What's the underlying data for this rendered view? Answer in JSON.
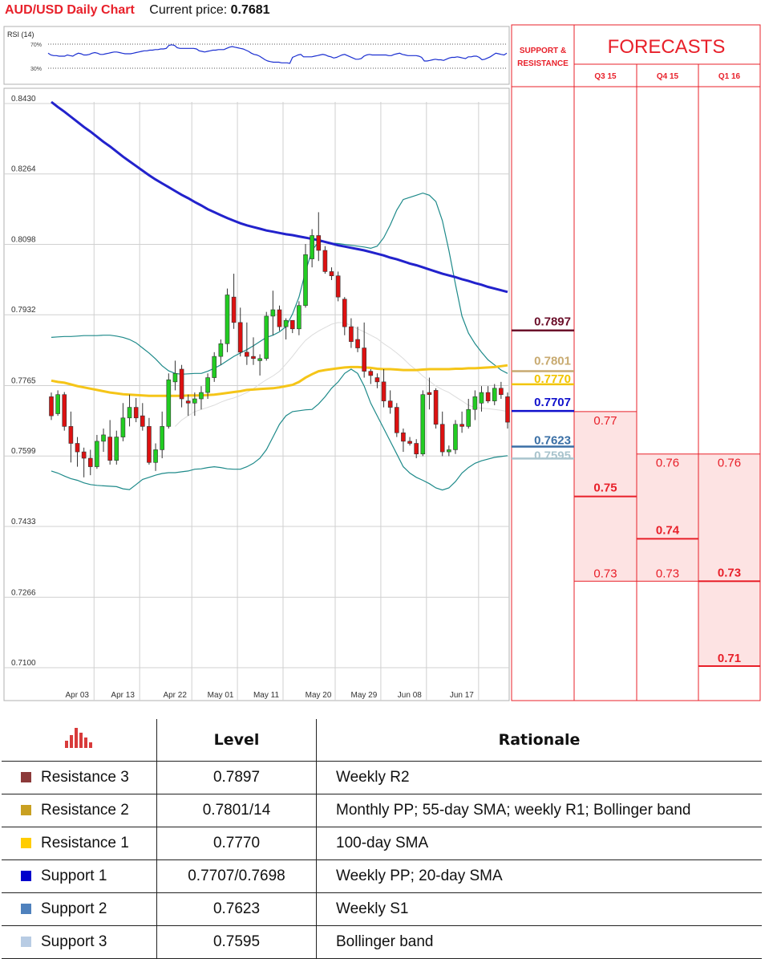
{
  "header": {
    "title": "AUD/USD Daily Chart",
    "price_label": "Current price:",
    "price_value": "0.7681"
  },
  "rsi": {
    "label": "RSI (14)",
    "levels": [
      "70%",
      "30%"
    ],
    "values": [
      55,
      52,
      51,
      51,
      50,
      50,
      50,
      52,
      51,
      50,
      53,
      55,
      54,
      52,
      52,
      53,
      55,
      56,
      55,
      53,
      53,
      54,
      55,
      56,
      57,
      57,
      56,
      55,
      54,
      54,
      54,
      55,
      56,
      57,
      58,
      59,
      59,
      60,
      60,
      61,
      61,
      62,
      62,
      63,
      68,
      69,
      68,
      64,
      63,
      63,
      63,
      63,
      63,
      63,
      62,
      59,
      58,
      57,
      58,
      59,
      60,
      60,
      61,
      61,
      61,
      63,
      65,
      66,
      65,
      64,
      63,
      62,
      60,
      58,
      55,
      53,
      52,
      50,
      47,
      44,
      42,
      41,
      40,
      40,
      40,
      39,
      39,
      39,
      38,
      48,
      50,
      52,
      53,
      49,
      49,
      49,
      49,
      50,
      51,
      52,
      53,
      52,
      50,
      49,
      47,
      48,
      50,
      52,
      53,
      51,
      49,
      47,
      45,
      45,
      46,
      50,
      52,
      53,
      52,
      52,
      52,
      52,
      52,
      52,
      51,
      51,
      53,
      54,
      55,
      53,
      52,
      51,
      51,
      51,
      51,
      50,
      48,
      42,
      42,
      43,
      44,
      45,
      44,
      44,
      43,
      45,
      47,
      48,
      48,
      49,
      48,
      47,
      46,
      49,
      49,
      50,
      50,
      48,
      44,
      45,
      47,
      49,
      52,
      55,
      54,
      53,
      52,
      55
    ]
  },
  "chart_data": {
    "type": "candlestick",
    "y_ticks": [
      "0.8430",
      "0.8264",
      "0.8098",
      "0.7932",
      "0.7765",
      "0.7599",
      "0.7433",
      "0.7266",
      "0.7100"
    ],
    "ylim": [
      0.71,
      0.843
    ],
    "x_ticks": [
      "Apr 03",
      "Apr 13",
      "Apr 22",
      "May 01",
      "May 11",
      "May 20",
      "May 29",
      "Jun 08",
      "Jun 17"
    ],
    "x_tick_index": [
      2,
      9,
      17,
      24,
      31,
      39,
      46,
      53,
      61
    ],
    "candles": [
      {
        "o": 0.7735,
        "h": 0.7745,
        "l": 0.768,
        "c": 0.769
      },
      {
        "o": 0.7695,
        "h": 0.775,
        "l": 0.769,
        "c": 0.774
      },
      {
        "o": 0.774,
        "h": 0.7746,
        "l": 0.7655,
        "c": 0.7665
      },
      {
        "o": 0.7665,
        "h": 0.77,
        "l": 0.758,
        "c": 0.7625
      },
      {
        "o": 0.7625,
        "h": 0.764,
        "l": 0.757,
        "c": 0.7605
      },
      {
        "o": 0.7605,
        "h": 0.7615,
        "l": 0.7545,
        "c": 0.759
      },
      {
        "o": 0.759,
        "h": 0.761,
        "l": 0.755,
        "c": 0.757
      },
      {
        "o": 0.757,
        "h": 0.7645,
        "l": 0.7565,
        "c": 0.763
      },
      {
        "o": 0.763,
        "h": 0.766,
        "l": 0.7605,
        "c": 0.7645
      },
      {
        "o": 0.764,
        "h": 0.768,
        "l": 0.7575,
        "c": 0.7585
      },
      {
        "o": 0.7585,
        "h": 0.7655,
        "l": 0.7575,
        "c": 0.764
      },
      {
        "o": 0.764,
        "h": 0.772,
        "l": 0.763,
        "c": 0.7685
      },
      {
        "o": 0.7685,
        "h": 0.774,
        "l": 0.7665,
        "c": 0.771
      },
      {
        "o": 0.771,
        "h": 0.7732,
        "l": 0.7675,
        "c": 0.7685
      },
      {
        "o": 0.769,
        "h": 0.772,
        "l": 0.7655,
        "c": 0.7665
      },
      {
        "o": 0.7665,
        "h": 0.7685,
        "l": 0.7575,
        "c": 0.758
      },
      {
        "o": 0.758,
        "h": 0.7625,
        "l": 0.756,
        "c": 0.761
      },
      {
        "o": 0.761,
        "h": 0.77,
        "l": 0.759,
        "c": 0.7665
      },
      {
        "o": 0.7665,
        "h": 0.779,
        "l": 0.766,
        "c": 0.7775
      },
      {
        "o": 0.777,
        "h": 0.782,
        "l": 0.775,
        "c": 0.779
      },
      {
        "o": 0.78,
        "h": 0.781,
        "l": 0.771,
        "c": 0.773
      },
      {
        "o": 0.7725,
        "h": 0.774,
        "l": 0.769,
        "c": 0.772
      },
      {
        "o": 0.772,
        "h": 0.7745,
        "l": 0.769,
        "c": 0.773
      },
      {
        "o": 0.773,
        "h": 0.776,
        "l": 0.7705,
        "c": 0.7745
      },
      {
        "o": 0.7745,
        "h": 0.779,
        "l": 0.773,
        "c": 0.778
      },
      {
        "o": 0.778,
        "h": 0.784,
        "l": 0.777,
        "c": 0.783
      },
      {
        "o": 0.783,
        "h": 0.787,
        "l": 0.781,
        "c": 0.786
      },
      {
        "o": 0.786,
        "h": 0.799,
        "l": 0.784,
        "c": 0.7975
      },
      {
        "o": 0.797,
        "h": 0.8025,
        "l": 0.7895,
        "c": 0.791
      },
      {
        "o": 0.791,
        "h": 0.7945,
        "l": 0.783,
        "c": 0.784
      },
      {
        "o": 0.784,
        "h": 0.791,
        "l": 0.781,
        "c": 0.783
      },
      {
        "o": 0.783,
        "h": 0.7875,
        "l": 0.781,
        "c": 0.7825
      },
      {
        "o": 0.782,
        "h": 0.7835,
        "l": 0.7785,
        "c": 0.7825
      },
      {
        "o": 0.7825,
        "h": 0.7935,
        "l": 0.782,
        "c": 0.7925
      },
      {
        "o": 0.7925,
        "h": 0.7985,
        "l": 0.788,
        "c": 0.794
      },
      {
        "o": 0.794,
        "h": 0.795,
        "l": 0.789,
        "c": 0.79
      },
      {
        "o": 0.79,
        "h": 0.792,
        "l": 0.787,
        "c": 0.7915
      },
      {
        "o": 0.7915,
        "h": 0.7915,
        "l": 0.7885,
        "c": 0.7895
      },
      {
        "o": 0.7895,
        "h": 0.796,
        "l": 0.788,
        "c": 0.795
      },
      {
        "o": 0.795,
        "h": 0.8095,
        "l": 0.7945,
        "c": 0.807
      },
      {
        "o": 0.806,
        "h": 0.813,
        "l": 0.804,
        "c": 0.8115
      },
      {
        "o": 0.8115,
        "h": 0.817,
        "l": 0.8055,
        "c": 0.808
      },
      {
        "o": 0.808,
        "h": 0.809,
        "l": 0.8025,
        "c": 0.803
      },
      {
        "o": 0.803,
        "h": 0.804,
        "l": 0.801,
        "c": 0.802
      },
      {
        "o": 0.802,
        "h": 0.803,
        "l": 0.796,
        "c": 0.797
      },
      {
        "o": 0.7965,
        "h": 0.797,
        "l": 0.788,
        "c": 0.79
      },
      {
        "o": 0.79,
        "h": 0.792,
        "l": 0.785,
        "c": 0.7865
      },
      {
        "o": 0.787,
        "h": 0.79,
        "l": 0.784,
        "c": 0.785
      },
      {
        "o": 0.785,
        "h": 0.791,
        "l": 0.778,
        "c": 0.7795
      },
      {
        "o": 0.7795,
        "h": 0.78,
        "l": 0.7765,
        "c": 0.7785
      },
      {
        "o": 0.778,
        "h": 0.779,
        "l": 0.7755,
        "c": 0.777
      },
      {
        "o": 0.777,
        "h": 0.78,
        "l": 0.771,
        "c": 0.7725
      },
      {
        "o": 0.7725,
        "h": 0.775,
        "l": 0.7695,
        "c": 0.771
      },
      {
        "o": 0.771,
        "h": 0.772,
        "l": 0.764,
        "c": 0.765
      },
      {
        "o": 0.765,
        "h": 0.766,
        "l": 0.7605,
        "c": 0.763
      },
      {
        "o": 0.763,
        "h": 0.764,
        "l": 0.762,
        "c": 0.7625
      },
      {
        "o": 0.7625,
        "h": 0.7635,
        "l": 0.759,
        "c": 0.76
      },
      {
        "o": 0.76,
        "h": 0.775,
        "l": 0.7595,
        "c": 0.774
      },
      {
        "o": 0.7745,
        "h": 0.778,
        "l": 0.7705,
        "c": 0.774
      },
      {
        "o": 0.775,
        "h": 0.7755,
        "l": 0.766,
        "c": 0.767
      },
      {
        "o": 0.767,
        "h": 0.77,
        "l": 0.7595,
        "c": 0.7605
      },
      {
        "o": 0.7605,
        "h": 0.762,
        "l": 0.7595,
        "c": 0.761
      },
      {
        "o": 0.761,
        "h": 0.768,
        "l": 0.76,
        "c": 0.767
      },
      {
        "o": 0.767,
        "h": 0.77,
        "l": 0.765,
        "c": 0.7665
      },
      {
        "o": 0.7665,
        "h": 0.773,
        "l": 0.766,
        "c": 0.7705
      },
      {
        "o": 0.7705,
        "h": 0.775,
        "l": 0.768,
        "c": 0.7735
      },
      {
        "o": 0.772,
        "h": 0.776,
        "l": 0.77,
        "c": 0.7745
      },
      {
        "o": 0.7745,
        "h": 0.776,
        "l": 0.772,
        "c": 0.7725
      },
      {
        "o": 0.7725,
        "h": 0.7765,
        "l": 0.7715,
        "c": 0.7755
      },
      {
        "o": 0.7755,
        "h": 0.777,
        "l": 0.773,
        "c": 0.774
      },
      {
        "o": 0.7735,
        "h": 0.7745,
        "l": 0.766,
        "c": 0.7675
      }
    ],
    "sma100": [
      0.7773,
      0.777,
      0.7768,
      0.7764,
      0.776,
      0.7757,
      0.7754,
      0.7751,
      0.7748,
      0.7745,
      0.7743,
      0.7741,
      0.774,
      0.7739,
      0.7738,
      0.7737,
      0.7737,
      0.7737,
      0.7737,
      0.7737,
      0.7737,
      0.7738,
      0.7738,
      0.7738,
      0.7739,
      0.774,
      0.7742,
      0.7744,
      0.7746,
      0.7748,
      0.7751,
      0.7752,
      0.7753,
      0.7754,
      0.7755,
      0.7757,
      0.776,
      0.7763,
      0.777,
      0.778,
      0.7788,
      0.7795,
      0.7798,
      0.78,
      0.7802,
      0.7804,
      0.7805,
      0.7805,
      0.7804,
      0.7803,
      0.7801,
      0.78,
      0.78,
      0.7799,
      0.7798,
      0.7798,
      0.7798,
      0.7799,
      0.78,
      0.78,
      0.78,
      0.78,
      0.7801,
      0.7801,
      0.7802,
      0.7802,
      0.7803,
      0.7804,
      0.7805,
      0.7807,
      0.7809
    ],
    "sma200": [
      0.843,
      0.8418,
      0.8407,
      0.8395,
      0.8383,
      0.8371,
      0.836,
      0.8348,
      0.8336,
      0.8325,
      0.8313,
      0.8301,
      0.829,
      0.8279,
      0.8268,
      0.8257,
      0.8247,
      0.8238,
      0.8229,
      0.822,
      0.8211,
      0.8203,
      0.8194,
      0.8186,
      0.8177,
      0.817,
      0.8163,
      0.8156,
      0.815,
      0.8144,
      0.8139,
      0.8135,
      0.8131,
      0.8127,
      0.8124,
      0.8121,
      0.8118,
      0.8116,
      0.8113,
      0.811,
      0.8107,
      0.8104,
      0.81,
      0.8096,
      0.8092,
      0.8089,
      0.8086,
      0.8083,
      0.808,
      0.8076,
      0.8072,
      0.8068,
      0.8063,
      0.8059,
      0.8054,
      0.8049,
      0.8045,
      0.804,
      0.8035,
      0.803,
      0.8025,
      0.8021,
      0.8017,
      0.8012,
      0.8008,
      0.8003,
      0.7999,
      0.7994,
      0.799,
      0.7986,
      0.7982
    ],
    "boll_upper": [
      0.7875,
      0.7876,
      0.7877,
      0.7877,
      0.7878,
      0.7879,
      0.7879,
      0.7879,
      0.788,
      0.788,
      0.7878,
      0.7875,
      0.787,
      0.7862,
      0.785,
      0.7838,
      0.7824,
      0.7808,
      0.7796,
      0.779,
      0.7788,
      0.7789,
      0.779,
      0.779,
      0.7795,
      0.7802,
      0.781,
      0.782,
      0.783,
      0.7838,
      0.7846,
      0.7855,
      0.7865,
      0.7875,
      0.788,
      0.7888,
      0.79,
      0.793,
      0.797,
      0.803,
      0.808,
      0.81,
      0.81,
      0.8097,
      0.8096,
      0.8094,
      0.8092,
      0.809,
      0.8088,
      0.8085,
      0.809,
      0.811,
      0.814,
      0.8175,
      0.82,
      0.8205,
      0.821,
      0.8215,
      0.821,
      0.8195,
      0.815,
      0.808,
      0.8,
      0.7925,
      0.7885,
      0.786,
      0.784,
      0.7822,
      0.781,
      0.7798,
      0.779
    ],
    "boll_lower": [
      0.756,
      0.7555,
      0.7548,
      0.7542,
      0.7538,
      0.7532,
      0.7528,
      0.7526,
      0.7525,
      0.7524,
      0.7523,
      0.7518,
      0.7516,
      0.7528,
      0.754,
      0.7545,
      0.755,
      0.7554,
      0.7556,
      0.7556,
      0.7558,
      0.756,
      0.7564,
      0.7565,
      0.7568,
      0.757,
      0.7568,
      0.7565,
      0.7564,
      0.7564,
      0.757,
      0.7578,
      0.759,
      0.761,
      0.764,
      0.767,
      0.769,
      0.77,
      0.7702,
      0.7704,
      0.7705,
      0.7718,
      0.7735,
      0.7755,
      0.777,
      0.779,
      0.78,
      0.779,
      0.776,
      0.772,
      0.769,
      0.766,
      0.763,
      0.76,
      0.757,
      0.7555,
      0.7545,
      0.7538,
      0.753,
      0.752,
      0.7515,
      0.752,
      0.7535,
      0.7555,
      0.7568,
      0.7578,
      0.7584,
      0.7588,
      0.7592,
      0.7594,
      0.7596
    ],
    "sma20": [
      null,
      null,
      null,
      null,
      null,
      null,
      null,
      null,
      null,
      null,
      null,
      null,
      null,
      null,
      null,
      null,
      null,
      null,
      null,
      0.7665,
      0.768,
      0.769,
      0.77,
      0.7705,
      0.771,
      0.7715,
      0.7722,
      0.7728,
      0.7732,
      0.7738,
      0.7745,
      0.7754,
      0.7765,
      0.7775,
      0.7784,
      0.7795,
      0.7812,
      0.783,
      0.785,
      0.7868,
      0.788,
      0.789,
      0.7898,
      0.7906,
      0.791,
      0.7909,
      0.7903,
      0.7895,
      0.7888,
      0.788,
      0.7872,
      0.786,
      0.785,
      0.7838,
      0.7825,
      0.781,
      0.7798,
      0.7784,
      0.7772,
      0.776,
      0.7752,
      0.7745,
      0.7735,
      0.7725,
      0.7715,
      0.771,
      0.7708,
      0.7707,
      0.7705,
      0.7703,
      0.77
    ]
  },
  "sr_levels": [
    {
      "label": "0.7897",
      "value": 0.7897,
      "color": "#6b0f2a"
    },
    {
      "label": "0.7801",
      "value": 0.7801,
      "color": "#c8aa70"
    },
    {
      "label": "0.7770",
      "value": 0.777,
      "color": "#f2c500"
    },
    {
      "label": "0.7707",
      "value": 0.7707,
      "color": "#1010cc"
    },
    {
      "label": "0.7623",
      "value": 0.7623,
      "color": "#3a6fa5"
    },
    {
      "label": "0.7595",
      "value": 0.7595,
      "color": "#a9c4cd"
    }
  ],
  "panel": {
    "sr_header": [
      "SUPPORT &",
      "RESISTANCE"
    ],
    "forecast_header": "FORECASTS",
    "quarters": [
      "Q3 15",
      "Q4 15",
      "Q1 16"
    ],
    "forecasts": [
      {
        "high": 0.77,
        "mid": 0.75,
        "low": 0.73
      },
      {
        "high": 0.76,
        "mid": 0.74,
        "low": 0.73
      },
      {
        "high": 0.76,
        "mid": 0.73,
        "low": 0.71
      }
    ],
    "forecast_labels": [
      {
        "high": "0.77",
        "mid": "0.75",
        "low": "0.73"
      },
      {
        "high": "0.76",
        "mid": "0.74",
        "low": "0.73"
      },
      {
        "high": "0.76",
        "mid": "0.73",
        "low": "0.71"
      }
    ]
  },
  "table": {
    "headers": {
      "level": "Level",
      "rationale": "Rationale"
    },
    "icon": "bar-chart-icon",
    "rows": [
      {
        "name": "Resistance 3",
        "level": "0.7897",
        "rationale": "Weekly R2",
        "color": "#8c3a3a"
      },
      {
        "name": "Resistance 2",
        "level": "0.7801/14",
        "rationale": "Monthly PP; 55-day SMA; weekly R1; Bollinger band",
        "color": "#c9a021"
      },
      {
        "name": "Resistance 1",
        "level": "0.7770",
        "rationale": "100-day SMA",
        "color": "#ffcc00"
      },
      {
        "name": "Support 1",
        "level": "0.7707/0.7698",
        "rationale": "Weekly PP; 20-day SMA",
        "color": "#0000cc"
      },
      {
        "name": "Support 2",
        "level": "0.7623",
        "rationale": "Weekly S1",
        "color": "#4f81bd"
      },
      {
        "name": "Support 3",
        "level": "0.7595",
        "rationale": "Bollinger band",
        "color": "#b8cce4"
      }
    ]
  },
  "colors": {
    "accent": "#e8202a",
    "bull": "#22cc22",
    "bear": "#dd1111",
    "sma200": "#2222cc",
    "sma100": "#f5c518",
    "bollinger": "#1e8a8a",
    "forecast_fill": "#fde3e3"
  }
}
